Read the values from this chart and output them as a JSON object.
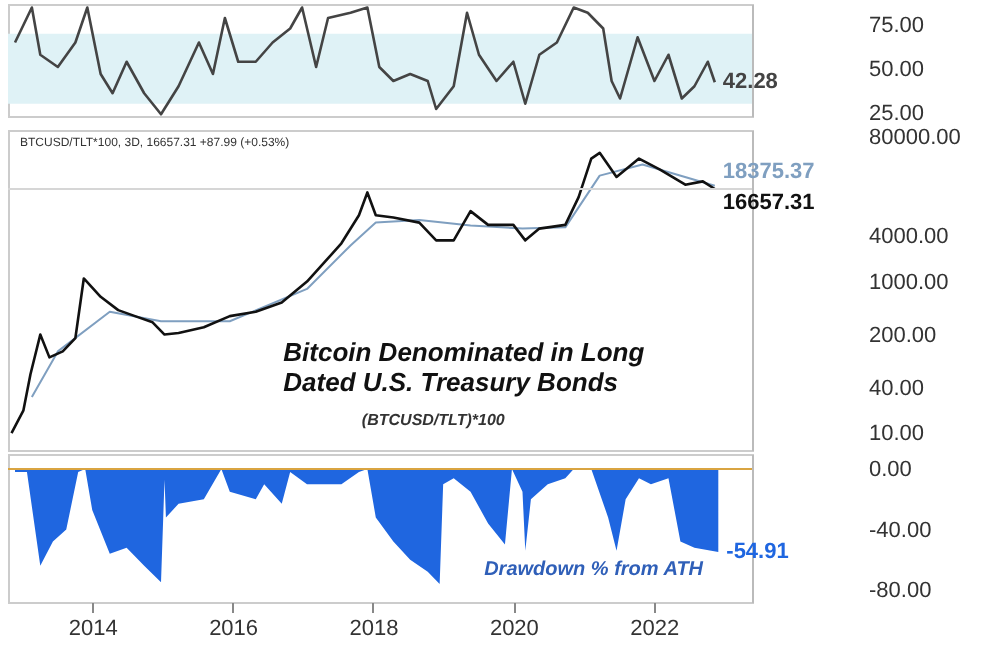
{
  "chart_data": [
    {
      "type": "line",
      "xlim": [
        2012.8,
        2023.4
      ],
      "ylim": [
        23,
        87
      ],
      "yticks": [
        {
          "value": 25,
          "label": "25.00"
        },
        {
          "value": 50,
          "label": "50.00"
        },
        {
          "value": 75,
          "label": "75.00"
        }
      ],
      "tick_labels": "y",
      "grid": false,
      "bands": [
        {
          "axis": "y",
          "from": 30,
          "to": 70,
          "color": "#dff2f6"
        }
      ],
      "series": [
        {
          "color": "#444444",
          "x": [
            2012.9,
            2013.14,
            2013.26,
            2013.51,
            2013.76,
            2013.93,
            2014.12,
            2014.29,
            2014.49,
            2014.74,
            2014.98,
            2015.23,
            2015.52,
            2015.72,
            2015.89,
            2016.08,
            2016.33,
            2016.57,
            2016.82,
            2016.99,
            2017.19,
            2017.36,
            2017.68,
            2017.92,
            2018.09,
            2018.29,
            2018.53,
            2018.78,
            2018.9,
            2019.15,
            2019.34,
            2019.51,
            2019.76,
            2020.0,
            2020.17,
            2020.37,
            2020.62,
            2020.86,
            2021.06,
            2021.28,
            2021.4,
            2021.52,
            2021.77,
            2022.01,
            2022.21,
            2022.4,
            2022.58,
            2022.77,
            2022.87
          ],
          "values": [
            65,
            85,
            58,
            51,
            65,
            85,
            47,
            36,
            54,
            36,
            24,
            40,
            65,
            47,
            79,
            54,
            54,
            65,
            73,
            85,
            51,
            79,
            82,
            85,
            51,
            43,
            47,
            43,
            27,
            40,
            82,
            58,
            43,
            54,
            30,
            58,
            65,
            85,
            82,
            73,
            43,
            33,
            68,
            43,
            58,
            33,
            40,
            54,
            42.28
          ],
          "value_labels": [
            null,
            null,
            null,
            null,
            null,
            null,
            null,
            null,
            null,
            null,
            null,
            null,
            null,
            null,
            null,
            null,
            null,
            null,
            null,
            null,
            null,
            null,
            null,
            null,
            null,
            null,
            null,
            null,
            null,
            null,
            null,
            null,
            null,
            null,
            null,
            null,
            null,
            null,
            null,
            null,
            null,
            null,
            null,
            null,
            null,
            null,
            null,
            null,
            "42.28"
          ]
        }
      ]
    },
    {
      "type": "line",
      "log": "y",
      "xlim": [
        2012.8,
        2023.4
      ],
      "ylim": [
        6,
        100000
      ],
      "yticks": [
        {
          "value": 10,
          "label": "10.00"
        },
        {
          "value": 40,
          "label": "40.00"
        },
        {
          "value": 200,
          "label": "200.00"
        },
        {
          "value": 1000,
          "label": "1000.00"
        },
        {
          "value": 4000,
          "label": "4000.00"
        },
        {
          "value": 80000,
          "label": "80000.00"
        }
      ],
      "tick_labels": "y",
      "grid": false,
      "title": "Bitcoin Denominated in Long Dated U.S. Treasury Bonds",
      "subtitle": "(BTCUSD/TLT)*100",
      "annotations": [
        "BTCUSD/TLT*100, 3D, 16657.31 +87.99 (+0.53%)"
      ],
      "ref_lines": [
        {
          "axis": "y",
          "value": 16657.31,
          "color": "#d6d6d6"
        }
      ],
      "series": [
        {
          "color": "#7f9fc0",
          "x": [
            2013.14,
            2013.51,
            2014.25,
            2014.98,
            2015.96,
            2017.06,
            2017.68,
            2018.04,
            2018.66,
            2019.39,
            2020.13,
            2020.74,
            2021.23,
            2021.84,
            2022.87
          ],
          "values": [
            30,
            120,
            400,
            300,
            300,
            800,
            3000,
            6000,
            6500,
            5500,
            5000,
            5200,
            25000,
            35000,
            18375.37
          ],
          "value_labels": [
            null,
            null,
            null,
            null,
            null,
            null,
            null,
            null,
            null,
            null,
            null,
            null,
            null,
            null,
            "18375.37"
          ]
        },
        {
          "color": "#111111",
          "x": [
            2012.85,
            2013.02,
            2013.12,
            2013.26,
            2013.39,
            2013.58,
            2013.76,
            2013.88,
            2014.12,
            2014.37,
            2014.61,
            2014.86,
            2015.03,
            2015.23,
            2015.59,
            2015.96,
            2016.33,
            2016.7,
            2017.06,
            2017.31,
            2017.55,
            2017.8,
            2017.92,
            2018.04,
            2018.29,
            2018.66,
            2018.9,
            2019.15,
            2019.39,
            2019.64,
            2020.0,
            2020.17,
            2020.37,
            2020.74,
            2020.93,
            2021.11,
            2021.23,
            2021.47,
            2021.79,
            2022.09,
            2022.45,
            2022.7,
            2022.87
          ],
          "values": [
            10,
            20,
            60,
            200,
            100,
            120,
            180,
            1100,
            630,
            420,
            350,
            290,
            200,
            210,
            250,
            350,
            400,
            530,
            1000,
            1800,
            3200,
            7500,
            15000,
            7500,
            7000,
            6000,
            3500,
            3500,
            8500,
            5600,
            5600,
            3500,
            5000,
            5600,
            13000,
            42000,
            50000,
            24000,
            42000,
            30000,
            19000,
            21000,
            16657.31
          ],
          "value_labels": [
            null,
            null,
            null,
            null,
            null,
            null,
            null,
            null,
            null,
            null,
            null,
            null,
            null,
            null,
            null,
            null,
            null,
            null,
            null,
            null,
            null,
            null,
            null,
            null,
            null,
            null,
            null,
            null,
            null,
            null,
            null,
            null,
            null,
            null,
            null,
            null,
            null,
            null,
            null,
            null,
            null,
            null,
            "16657.31"
          ]
        }
      ]
    },
    {
      "type": "area",
      "xlim": [
        2012.8,
        2023.4
      ],
      "xticks": [
        2014,
        2016,
        2018,
        2020,
        2022
      ],
      "ylim": [
        -88,
        10
      ],
      "yticks": [
        {
          "value": 0,
          "label": "0.00"
        },
        {
          "value": -40,
          "label": "-40.00"
        },
        {
          "value": -80,
          "label": "-80.00"
        }
      ],
      "grid": false,
      "annotations": [
        "Drawdown % from ATH"
      ],
      "ref_lines": [
        {
          "axis": "y",
          "value": 0,
          "color": "#d9a441"
        }
      ],
      "series": [
        {
          "color": "#1f66e0",
          "x": [
            2012.9,
            2013.07,
            2013.26,
            2013.44,
            2013.63,
            2013.8,
            2013.9,
            2014.0,
            2014.25,
            2014.49,
            2014.74,
            2014.98,
            2015.03,
            2015.05,
            2015.23,
            2015.59,
            2015.84,
            2015.96,
            2016.33,
            2016.45,
            2016.7,
            2016.82,
            2017.06,
            2017.31,
            2017.55,
            2017.8,
            2017.92,
            2018.04,
            2018.29,
            2018.53,
            2018.78,
            2018.95,
            2019.0,
            2019.15,
            2019.39,
            2019.64,
            2019.88,
            2019.98,
            2020.13,
            2020.17,
            2020.25,
            2020.49,
            2020.74,
            2020.86,
            2021.11,
            2021.35,
            2021.47,
            2021.6,
            2021.79,
            2021.96,
            2022.21,
            2022.38,
            2022.58,
            2022.82,
            2022.92
          ],
          "values": [
            -2,
            -2,
            -64,
            -48,
            -40,
            -2,
            0,
            -27,
            -56,
            -52,
            -64,
            -75,
            -7,
            -32,
            -23,
            -20,
            0,
            -15,
            -20,
            -10,
            -23,
            -2,
            -10,
            -10,
            -10,
            -2,
            0,
            -32,
            -48,
            -60,
            -68,
            -76,
            -10,
            -6,
            -15,
            -36,
            -50,
            0,
            -15,
            -54,
            -20,
            -10,
            -6,
            0,
            0,
            -32,
            -54,
            -20,
            -6,
            -10,
            -6,
            -48,
            -52,
            -54,
            -54.91
          ],
          "value_labels": [
            null,
            null,
            null,
            null,
            null,
            null,
            null,
            null,
            null,
            null,
            null,
            null,
            null,
            null,
            null,
            null,
            null,
            null,
            null,
            null,
            null,
            null,
            null,
            null,
            null,
            null,
            null,
            null,
            null,
            null,
            null,
            null,
            null,
            null,
            null,
            null,
            null,
            null,
            null,
            null,
            null,
            null,
            null,
            null,
            null,
            null,
            null,
            null,
            null,
            null,
            null,
            null,
            null,
            null,
            "-54.91"
          ]
        }
      ]
    }
  ]
}
